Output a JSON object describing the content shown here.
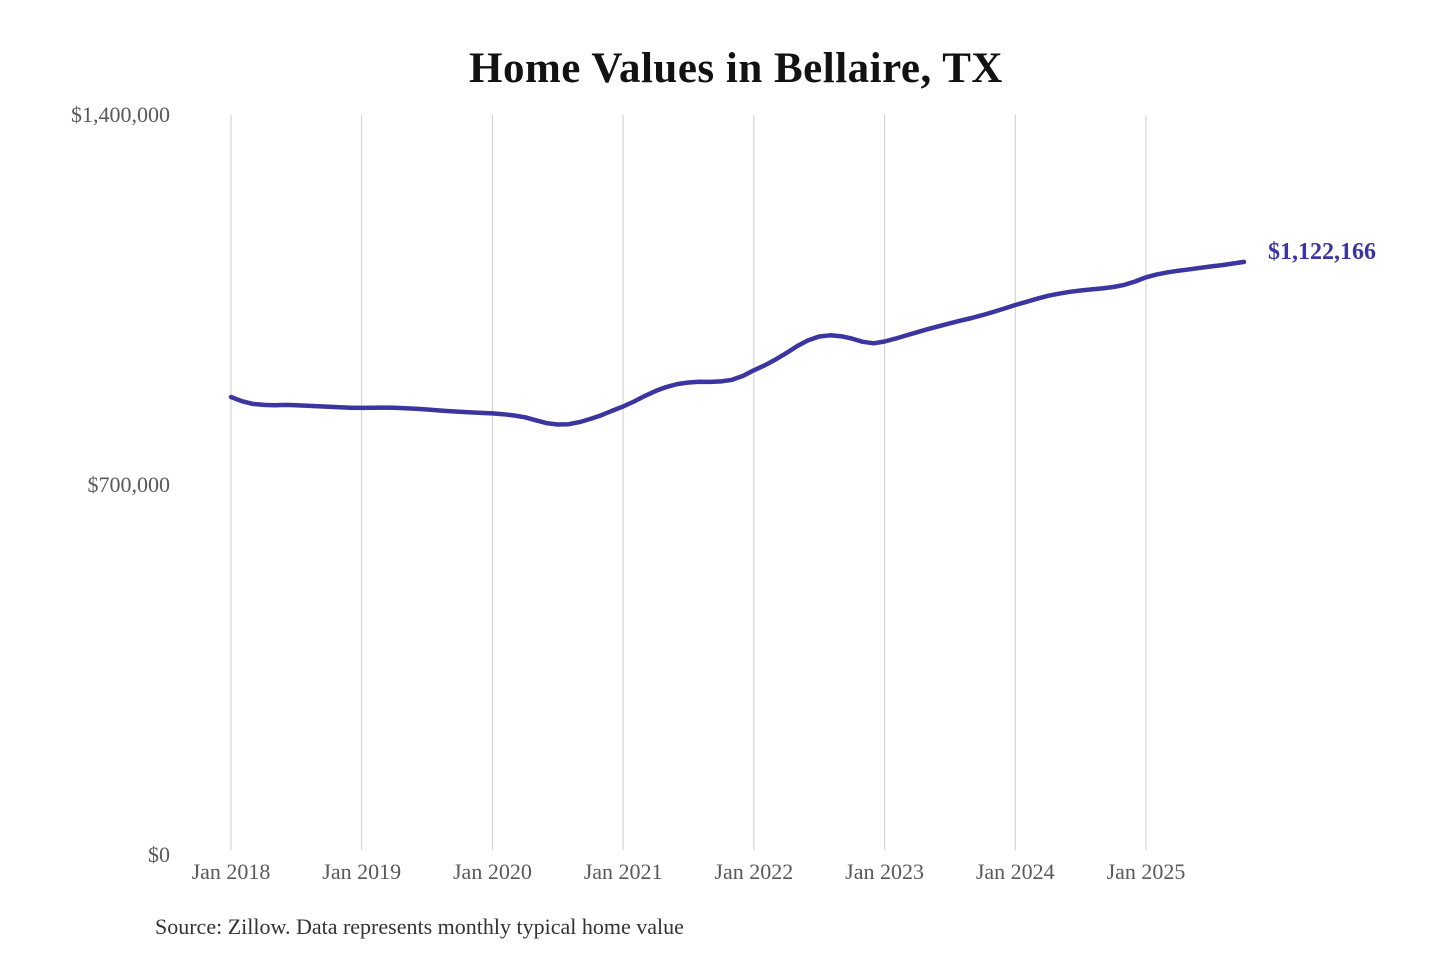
{
  "chart": {
    "title": "Home Values in Bellaire, TX",
    "end_label": "$1,122,166",
    "source": "Source: Zillow. Data represents monthly typical home value",
    "colors": {
      "line": "#3b35a0",
      "end_label": "#3b35a0",
      "grid": "#cccccc",
      "axis_text": "#595959",
      "title_text": "#121212",
      "source_text": "#333333",
      "background": "#ffffff"
    }
  },
  "chart_data": {
    "type": "line",
    "title": "Home Values in Bellaire, TX",
    "series_name": "Monthly typical home value (USD)",
    "xlabel": "",
    "ylabel": "",
    "ylim": [
      0,
      1400000
    ],
    "grid": "vertical-only",
    "legend": "none",
    "end_annotation": "$1,122,166",
    "y_ticks": [
      {
        "value": 1400000,
        "label": "$1,400,000"
      },
      {
        "value": 700000,
        "label": "$700,000"
      },
      {
        "value": 0,
        "label": "$0"
      }
    ],
    "x_ticks": [
      {
        "month": "2018-01",
        "label": "Jan 2018"
      },
      {
        "month": "2019-01",
        "label": "Jan 2019"
      },
      {
        "month": "2020-01",
        "label": "Jan 2020"
      },
      {
        "month": "2021-01",
        "label": "Jan 2021"
      },
      {
        "month": "2022-01",
        "label": "Jan 2022"
      },
      {
        "month": "2023-01",
        "label": "Jan 2023"
      },
      {
        "month": "2024-01",
        "label": "Jan 2024"
      },
      {
        "month": "2025-01",
        "label": "Jan 2025"
      }
    ],
    "x": [
      "2018-01",
      "2018-02",
      "2018-03",
      "2018-04",
      "2018-05",
      "2018-06",
      "2018-07",
      "2018-08",
      "2018-09",
      "2018-10",
      "2018-11",
      "2018-12",
      "2019-01",
      "2019-02",
      "2019-03",
      "2019-04",
      "2019-05",
      "2019-06",
      "2019-07",
      "2019-08",
      "2019-09",
      "2019-10",
      "2019-11",
      "2019-12",
      "2020-01",
      "2020-02",
      "2020-03",
      "2020-04",
      "2020-05",
      "2020-06",
      "2020-07",
      "2020-08",
      "2020-09",
      "2020-10",
      "2020-11",
      "2020-12",
      "2021-01",
      "2021-02",
      "2021-03",
      "2021-04",
      "2021-05",
      "2021-06",
      "2021-07",
      "2021-08",
      "2021-09",
      "2021-10",
      "2021-11",
      "2021-12",
      "2022-01",
      "2022-02",
      "2022-03",
      "2022-04",
      "2022-05",
      "2022-06",
      "2022-07",
      "2022-08",
      "2022-09",
      "2022-10",
      "2022-11",
      "2022-12",
      "2023-01",
      "2023-02",
      "2023-03",
      "2023-04",
      "2023-05",
      "2023-06",
      "2023-07",
      "2023-08",
      "2023-09",
      "2023-10",
      "2023-11",
      "2023-12",
      "2024-01",
      "2024-02",
      "2024-03",
      "2024-04",
      "2024-05",
      "2024-06",
      "2024-07",
      "2024-08",
      "2024-09",
      "2024-10",
      "2024-11",
      "2024-12",
      "2025-01",
      "2025-02",
      "2025-03",
      "2025-04",
      "2025-05",
      "2025-06",
      "2025-07",
      "2025-08",
      "2025-09",
      "2025-10"
    ],
    "values": [
      866500,
      858500,
      853500,
      851500,
      851000,
      851500,
      851000,
      850000,
      849000,
      848000,
      847000,
      846200,
      845800,
      846000,
      846500,
      846000,
      845200,
      844200,
      842800,
      841200,
      839800,
      838600,
      837400,
      836400,
      835500,
      834000,
      831500,
      828000,
      822500,
      817000,
      814500,
      815000,
      819000,
      825000,
      832000,
      840500,
      848500,
      858000,
      868500,
      878000,
      885500,
      891000,
      894000,
      895200,
      895000,
      896000,
      899000,
      906500,
      917000,
      926500,
      937500,
      950000,
      963000,
      974000,
      981000,
      983200,
      981500,
      977000,
      971000,
      968000,
      971500,
      977000,
      983000,
      989000,
      995000,
      1000500,
      1006000,
      1011000,
      1016000,
      1021500,
      1027500,
      1034000,
      1040500,
      1046500,
      1052500,
      1058000,
      1062000,
      1065500,
      1068000,
      1070000,
      1072000,
      1074500,
      1078500,
      1085000,
      1093000,
      1098500,
      1102500,
      1105500,
      1108000,
      1111000,
      1113500,
      1116000,
      1119000,
      1122166
    ]
  }
}
